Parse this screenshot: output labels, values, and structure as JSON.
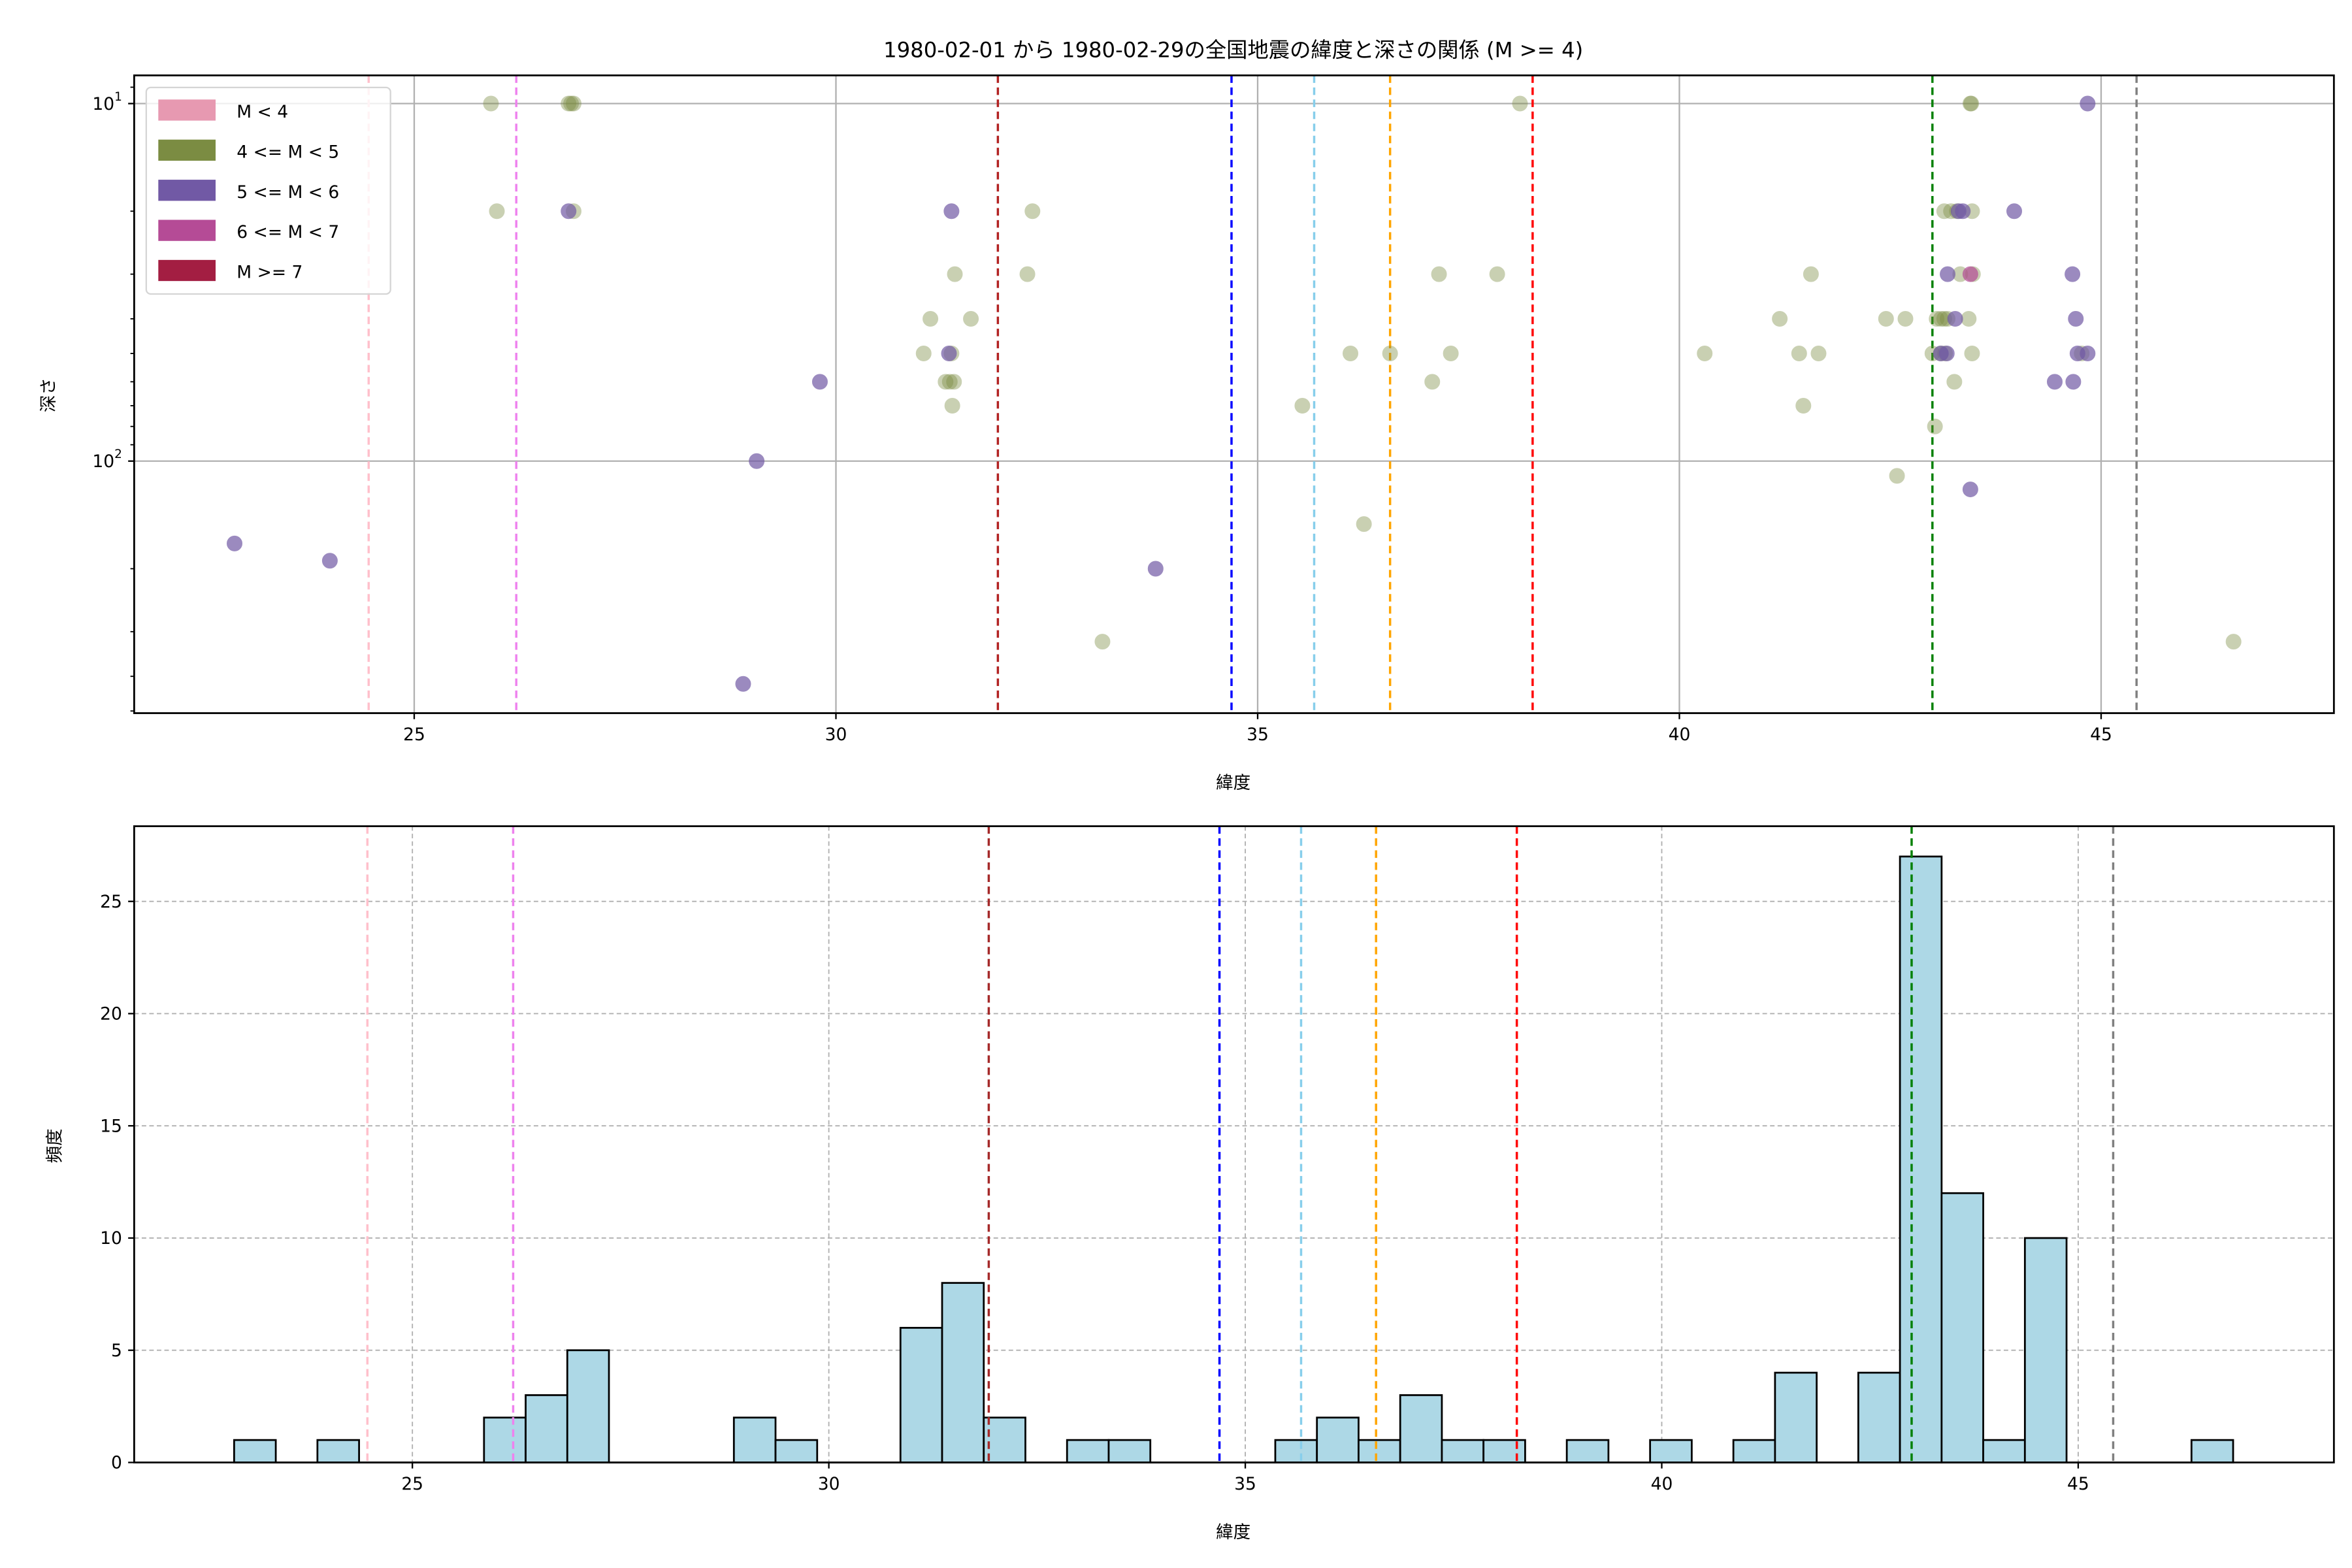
{
  "chart_data": [
    {
      "type": "scatter",
      "title": "1980-02-01 から 1980-02-29の全国地震の緯度と深さの関係 (M >= 4)",
      "xlabel": "緯度",
      "ylabel": "深さ",
      "xlim": [
        21.68,
        47.76
      ],
      "ylim": [
        507,
        8.34
      ],
      "yscale": "log",
      "y_inverted": true,
      "grid": true,
      "xticks": [
        25,
        30,
        35,
        40,
        45
      ],
      "xtick_labels": [
        "25",
        "30",
        "35",
        "40",
        "45"
      ],
      "yticks": [
        10,
        100
      ],
      "ytick_labels": [
        {
          "base": "10",
          "exp": "1"
        },
        {
          "base": "10",
          "exp": "2"
        }
      ],
      "legend_position": "top-left",
      "legend": [
        {
          "label": "M < 4",
          "color": "#e799b1"
        },
        {
          "label": "4 <= M < 5",
          "color": "#7b8c42"
        },
        {
          "label": "5 <= M < 6",
          "color": "#7159a5"
        },
        {
          "label": "6 <= M < 7",
          "color": "#b54b96"
        },
        {
          "label": "M >= 7",
          "color": "#a31e42"
        }
      ],
      "class_opacity": [
        0.5,
        0.4,
        0.7,
        0.7,
        0.7
      ],
      "points": [
        [
          25.91,
          10,
          1
        ],
        [
          25.98,
          20,
          1
        ],
        [
          26.83,
          10,
          1
        ],
        [
          26.86,
          10,
          1
        ],
        [
          26.89,
          10,
          1
        ],
        [
          26.89,
          20,
          1
        ],
        [
          31.04,
          50,
          1
        ],
        [
          31.12,
          40,
          1
        ],
        [
          31.41,
          30,
          1
        ],
        [
          31.37,
          50,
          1
        ],
        [
          31.3,
          60,
          1
        ],
        [
          31.35,
          60,
          1
        ],
        [
          31.4,
          60,
          1
        ],
        [
          31.38,
          70,
          1
        ],
        [
          31.6,
          40,
          1
        ],
        [
          32.27,
          30,
          1
        ],
        [
          32.33,
          20,
          1
        ],
        [
          33.16,
          320,
          1
        ],
        [
          35.53,
          70,
          1
        ],
        [
          36.1,
          50,
          1
        ],
        [
          36.26,
          150,
          1
        ],
        [
          36.57,
          50,
          1
        ],
        [
          37.07,
          60,
          1
        ],
        [
          37.15,
          30,
          1
        ],
        [
          37.29,
          50,
          1
        ],
        [
          37.84,
          30,
          1
        ],
        [
          38.11,
          10,
          1
        ],
        [
          40.3,
          50,
          1
        ],
        [
          41.19,
          40,
          1
        ],
        [
          41.42,
          50,
          1
        ],
        [
          41.47,
          70,
          1
        ],
        [
          41.56,
          30,
          1
        ],
        [
          41.65,
          50,
          1
        ],
        [
          42.45,
          40,
          1
        ],
        [
          42.58,
          110,
          1
        ],
        [
          42.68,
          40,
          1
        ],
        [
          43.03,
          80,
          1
        ],
        [
          43.0,
          50,
          1
        ],
        [
          43.1,
          50,
          1
        ],
        [
          43.15,
          50,
          1
        ],
        [
          43.47,
          50,
          1
        ],
        [
          43.14,
          20,
          1
        ],
        [
          43.22,
          20,
          1
        ],
        [
          43.29,
          20,
          1
        ],
        [
          43.47,
          20,
          1
        ],
        [
          43.33,
          30,
          1
        ],
        [
          43.48,
          30,
          1
        ],
        [
          43.05,
          40,
          1
        ],
        [
          43.1,
          40,
          1
        ],
        [
          43.14,
          40,
          1
        ],
        [
          43.18,
          40,
          1
        ],
        [
          43.43,
          40,
          1
        ],
        [
          43.26,
          60,
          1
        ],
        [
          43.45,
          10,
          1
        ],
        [
          43.46,
          10,
          1
        ],
        [
          44.77,
          50,
          1
        ],
        [
          46.57,
          320,
          1
        ],
        [
          22.87,
          170,
          2
        ],
        [
          24.0,
          190,
          2
        ],
        [
          26.83,
          20,
          2
        ],
        [
          28.9,
          420,
          2
        ],
        [
          29.06,
          100,
          2
        ],
        [
          29.81,
          60,
          2
        ],
        [
          31.37,
          20,
          2
        ],
        [
          31.34,
          50,
          2
        ],
        [
          33.79,
          200,
          2
        ],
        [
          43.36,
          20,
          2
        ],
        [
          43.31,
          20,
          2
        ],
        [
          43.97,
          20,
          2
        ],
        [
          43.18,
          30,
          2
        ],
        [
          44.66,
          30,
          2
        ],
        [
          43.27,
          40,
          2
        ],
        [
          44.7,
          40,
          2
        ],
        [
          43.1,
          50,
          2
        ],
        [
          43.17,
          50,
          2
        ],
        [
          44.72,
          50,
          2
        ],
        [
          44.84,
          50,
          2
        ],
        [
          44.45,
          60,
          2
        ],
        [
          44.67,
          60,
          2
        ],
        [
          43.45,
          120,
          2
        ],
        [
          44.84,
          10,
          2
        ],
        [
          43.45,
          30,
          3
        ]
      ],
      "reference_lines": [
        {
          "x": 24.46,
          "color": "#ffc0cb"
        },
        {
          "x": 26.21,
          "color": "#ee82ee"
        },
        {
          "x": 31.92,
          "color": "#b22222"
        },
        {
          "x": 34.69,
          "color": "#0000ff"
        },
        {
          "x": 35.67,
          "color": "#87ceeb"
        },
        {
          "x": 36.57,
          "color": "#ffa500"
        },
        {
          "x": 38.26,
          "color": "#ff0000"
        },
        {
          "x": 43.0,
          "color": "#008000"
        },
        {
          "x": 45.42,
          "color": "#808080"
        }
      ]
    },
    {
      "type": "bar",
      "subtype": "histogram",
      "xlabel": "緯度",
      "ylabel": "頻度",
      "xlim": [
        21.66,
        48.07
      ],
      "ylim": [
        0,
        28.35
      ],
      "grid": true,
      "bar_color": "#add8e6",
      "edge_color": "#000000",
      "bin_start": 22.86,
      "bin_width": 0.5,
      "counts": [
        1,
        0,
        1,
        0,
        0,
        0,
        2,
        3,
        5,
        0,
        0,
        0,
        2,
        1,
        0,
        0,
        6,
        8,
        2,
        0,
        1,
        1,
        0,
        0,
        0,
        1,
        2,
        1,
        3,
        1,
        1,
        0,
        1,
        0,
        1,
        0,
        1,
        4,
        0,
        4,
        27,
        12,
        1,
        10,
        0,
        0,
        0,
        1
      ],
      "xticks": [
        25,
        30,
        35,
        40,
        45
      ],
      "xtick_labels": [
        "25",
        "30",
        "35",
        "40",
        "45"
      ],
      "yticks": [
        0,
        5,
        10,
        15,
        20,
        25
      ],
      "ytick_labels": [
        "0",
        "5",
        "10",
        "15",
        "20",
        "25"
      ],
      "reference_lines": [
        {
          "x": 24.46,
          "color": "#ffc0cb"
        },
        {
          "x": 26.21,
          "color": "#ee82ee"
        },
        {
          "x": 31.92,
          "color": "#a52a2a"
        },
        {
          "x": 34.69,
          "color": "#0000ff"
        },
        {
          "x": 35.67,
          "color": "#87ceeb"
        },
        {
          "x": 36.57,
          "color": "#ffa500"
        },
        {
          "x": 38.26,
          "color": "#ff0000"
        },
        {
          "x": 43.0,
          "color": "#008000"
        },
        {
          "x": 45.42,
          "color": "#808080"
        }
      ]
    }
  ]
}
